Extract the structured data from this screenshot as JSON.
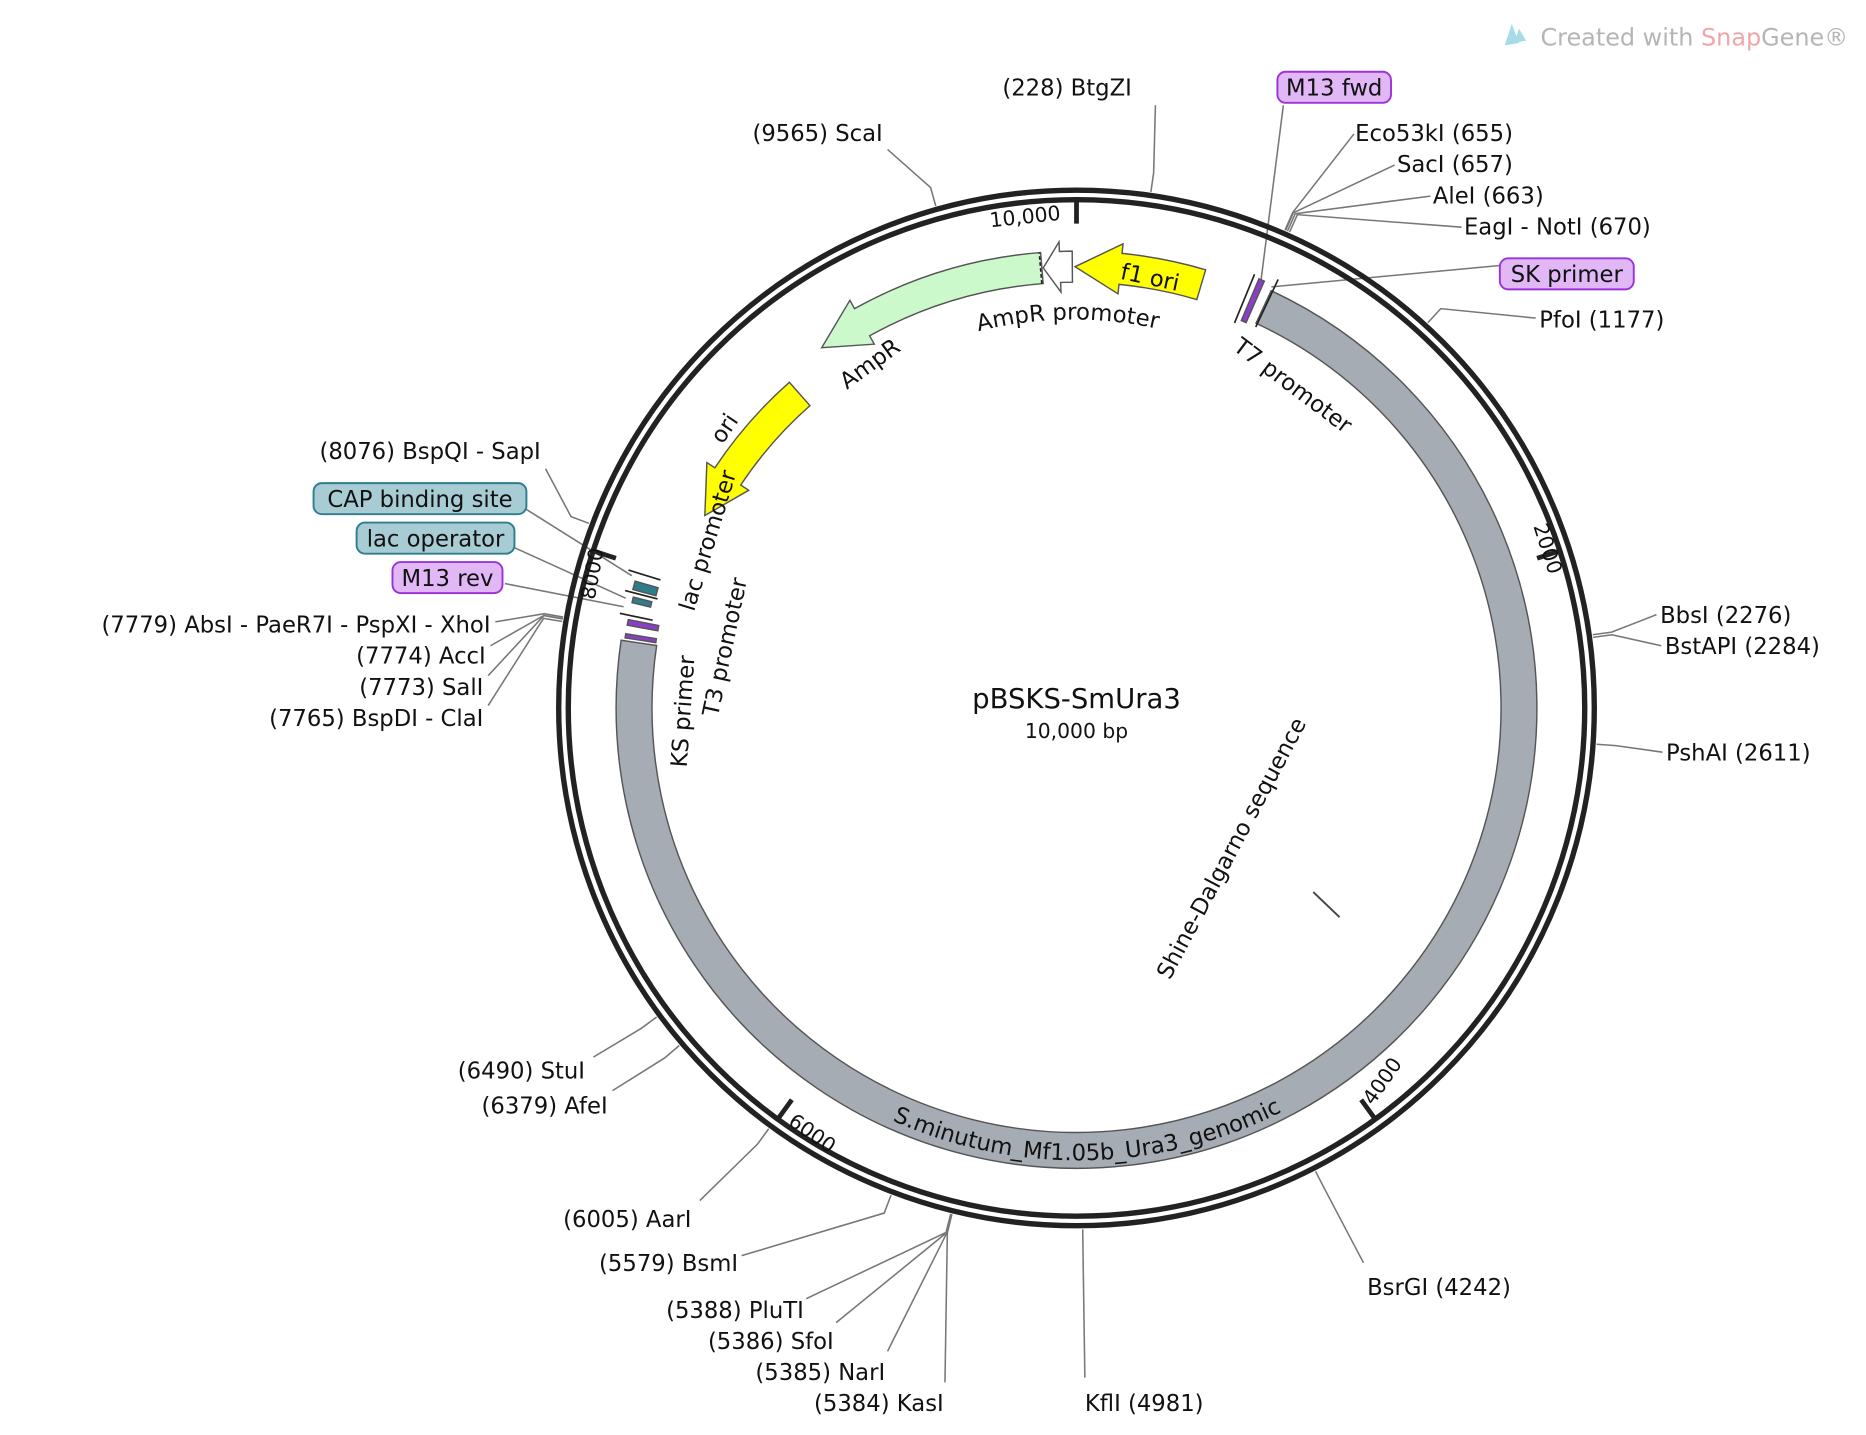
{
  "map": {
    "title": "pBSKS-SmUra3",
    "subtitle": "10,000 bp",
    "length_bp": 10000,
    "ticks": [
      {
        "pos": 2000,
        "label": "2000"
      },
      {
        "pos": 4000,
        "label": "4000"
      },
      {
        "pos": 6000,
        "label": "6000"
      },
      {
        "pos": 8000,
        "label": "8000"
      },
      {
        "pos": 10000,
        "label": "10,000"
      }
    ]
  },
  "logo": {
    "prefix": "Created with ",
    "snap": "Snap",
    "gene": "Gene®"
  },
  "colors": {
    "backbone": "#222222",
    "insert": "#a6acb3",
    "yellow": "#ffff00",
    "ampr": "#ccf9cc",
    "primer": "#e1b8f5",
    "primer_border": "#9b33d6",
    "regulatory": "#a7ccd4",
    "regulatory_border": "#2e7d8c",
    "logo_gray": "#b5b5b5",
    "logo_pink": "#f0a6a6"
  },
  "features": [
    {
      "name": "S.minutum_Mf1.05b_Ura3_genomic",
      "start": 695,
      "end": 7735,
      "color": "#a6acb3",
      "direction": "none"
    },
    {
      "name": "f1 ori",
      "start": 9995,
      "end": 10456,
      "color": "#ffff00",
      "direction": "reverse"
    },
    {
      "name": "AmpR promoter",
      "start": 9880,
      "end": 9985,
      "color": "#ffffff",
      "direction": "reverse"
    },
    {
      "name": "AmpR",
      "start": 9020,
      "end": 9875,
      "color": "#ccf9cc",
      "direction": "reverse"
    },
    {
      "name": "ori",
      "start": 8260,
      "end": 8850,
      "color": "#ffff00",
      "direction": "reverse"
    },
    {
      "name": "T7 promoter",
      "start": 640,
      "end": 660,
      "color": "#8b3ec9",
      "direction": "none"
    },
    {
      "name": "lac promoter",
      "start": 7915,
      "end": 7945,
      "color": "#2e7d8c",
      "direction": "none"
    },
    {
      "name": "lac operator",
      "start": 7870,
      "end": 7890,
      "color": "#2e7d8c",
      "direction": "none"
    },
    {
      "name": "T3 promoter",
      "start": 7790,
      "end": 7810,
      "color": "#8b3ec9",
      "direction": "none"
    },
    {
      "name": "KS primer",
      "start": 7745,
      "end": 7760,
      "color": "#8b3ec9",
      "direction": "none"
    }
  ],
  "feature_labels": {
    "genomic": "S.minutum_Mf1.05b_Ura3_genomic",
    "f1ori": "f1 ori",
    "ampr_promoter": "AmpR promoter",
    "ampr": "AmpR",
    "ori": "ori",
    "t7": "T7 promoter",
    "lac_promoter": "lac promoter",
    "t3": "T3 promoter",
    "ks": "KS primer",
    "shine": "Shine-Dalgarno sequence"
  },
  "boxed_labels": [
    {
      "label": "M13 fwd",
      "kind": "primer",
      "pos": 650
    },
    {
      "label": "SK primer",
      "kind": "primer",
      "pos": 690
    },
    {
      "label": "CAP binding site",
      "kind": "regulatory",
      "pos": 7960
    },
    {
      "label": "lac operator",
      "kind": "regulatory",
      "pos": 7880
    },
    {
      "label": "M13 rev",
      "kind": "primer",
      "pos": 7850
    }
  ],
  "enzymes": [
    {
      "label": "(228)  BtgZI",
      "pos": 228
    },
    {
      "label": "(9565)  ScaI",
      "pos": 9565
    },
    {
      "label": "Eco53kI  (655)",
      "pos": 655
    },
    {
      "label": "SacI  (657)",
      "pos": 657
    },
    {
      "label": "AleI  (663)",
      "pos": 663
    },
    {
      "label": "EagI - NotI  (670)",
      "pos": 670
    },
    {
      "label": "PfoI  (1177)",
      "pos": 1177
    },
    {
      "label": "BbsI  (2276)",
      "pos": 2276
    },
    {
      "label": "BstAPI  (2284)",
      "pos": 2284
    },
    {
      "label": "PshAI  (2611)",
      "pos": 2611
    },
    {
      "label": "BsrGI  (4242)",
      "pos": 4242
    },
    {
      "label": "KflI  (4981)",
      "pos": 4981
    },
    {
      "label": "(5384)  KasI",
      "pos": 5384
    },
    {
      "label": "(5385)  NarI",
      "pos": 5385
    },
    {
      "label": "(5386)  SfoI",
      "pos": 5386
    },
    {
      "label": "(5388)  PluTI",
      "pos": 5388
    },
    {
      "label": "(5579)  BsmI",
      "pos": 5579
    },
    {
      "label": "(6005)  AarI",
      "pos": 6005
    },
    {
      "label": "(6379)  AfeI",
      "pos": 6379
    },
    {
      "label": "(6490)  StuI",
      "pos": 6490
    },
    {
      "label": "(7765)  BspDI - ClaI",
      "pos": 7765
    },
    {
      "label": "(7773)  SalI",
      "pos": 7773
    },
    {
      "label": "(7774)  AccI",
      "pos": 7774
    },
    {
      "label": "(7779)  AbsI - PaeR7I - PspXI - XhoI",
      "pos": 7779
    },
    {
      "label": "(8076)  BspQI - SapI",
      "pos": 8076
    }
  ]
}
